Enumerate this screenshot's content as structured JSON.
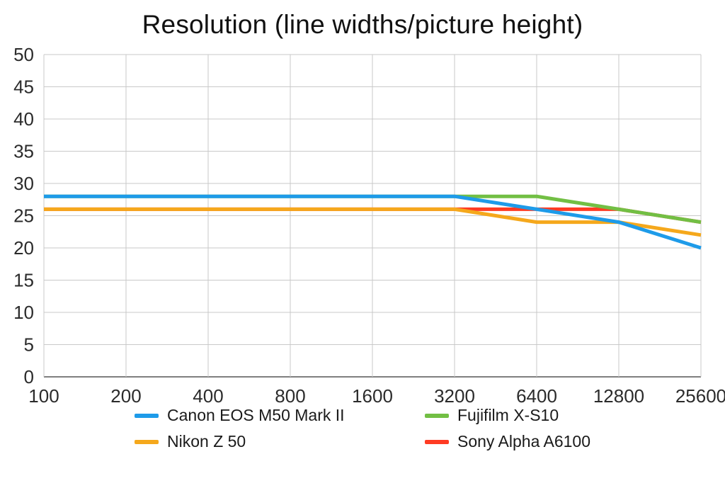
{
  "chart_data": {
    "type": "line",
    "title": "Resolution (line widths/picture height)",
    "xlabel": "",
    "ylabel": "",
    "categories": [
      "100",
      "200",
      "400",
      "800",
      "1600",
      "3200",
      "6400",
      "12800",
      "25600"
    ],
    "series": [
      {
        "name": "Canon EOS M50 Mark II",
        "color": "#1e9be9",
        "values": [
          28,
          28,
          28,
          28,
          28,
          28,
          26,
          24,
          20
        ]
      },
      {
        "name": "Nikon Z 50",
        "color": "#f5a81c",
        "values": [
          26,
          26,
          26,
          26,
          26,
          26,
          24,
          24,
          22
        ]
      },
      {
        "name": "Fujifilm X-S10",
        "color": "#72bf44",
        "values": [
          28,
          28,
          28,
          28,
          28,
          28,
          28,
          26,
          24
        ]
      },
      {
        "name": "Sony Alpha A6100",
        "color": "#ff3b23",
        "values": [
          26,
          26,
          26,
          26,
          26,
          26,
          26,
          26,
          24
        ]
      }
    ],
    "ylim": [
      0,
      50
    ],
    "ytick_step": 5,
    "grid": "on",
    "legend_position": "bottom",
    "colors": {
      "grid": "#c9c9c9",
      "axis": "#7f7f7f",
      "tick_text": "#2b2b2b"
    }
  }
}
